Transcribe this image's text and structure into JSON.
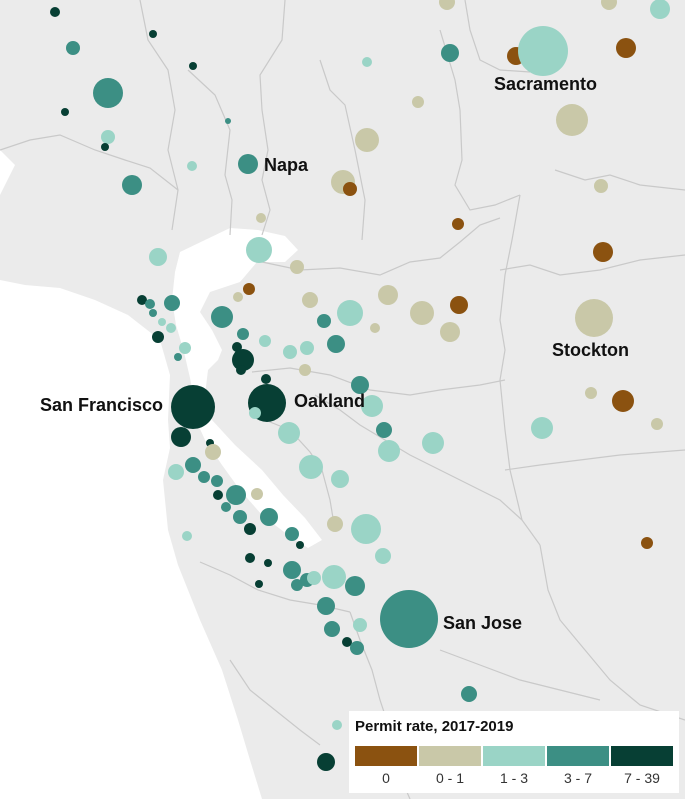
{
  "map": {
    "colors": {
      "land": "#ebebeb",
      "water": "#ffffff",
      "boundaries": "#c9c9c9"
    }
  },
  "cities": [
    {
      "name": "Sacramento"
    },
    {
      "name": "Napa"
    },
    {
      "name": "Stockton"
    },
    {
      "name": "San Francisco"
    },
    {
      "name": "Oakland"
    },
    {
      "name": "San Jose"
    }
  ],
  "legend": {
    "title": "Permit rate, 2017-2019",
    "categories": [
      {
        "label": "0",
        "color": "#8b5210"
      },
      {
        "label": "0 - 1",
        "color": "#c9c8a8"
      },
      {
        "label": "1 - 3",
        "color": "#9ad4c6"
      },
      {
        "label": "3 - 7",
        "color": "#3c8f84"
      },
      {
        "label": "7 - 39",
        "color": "#073f34"
      }
    ]
  }
}
